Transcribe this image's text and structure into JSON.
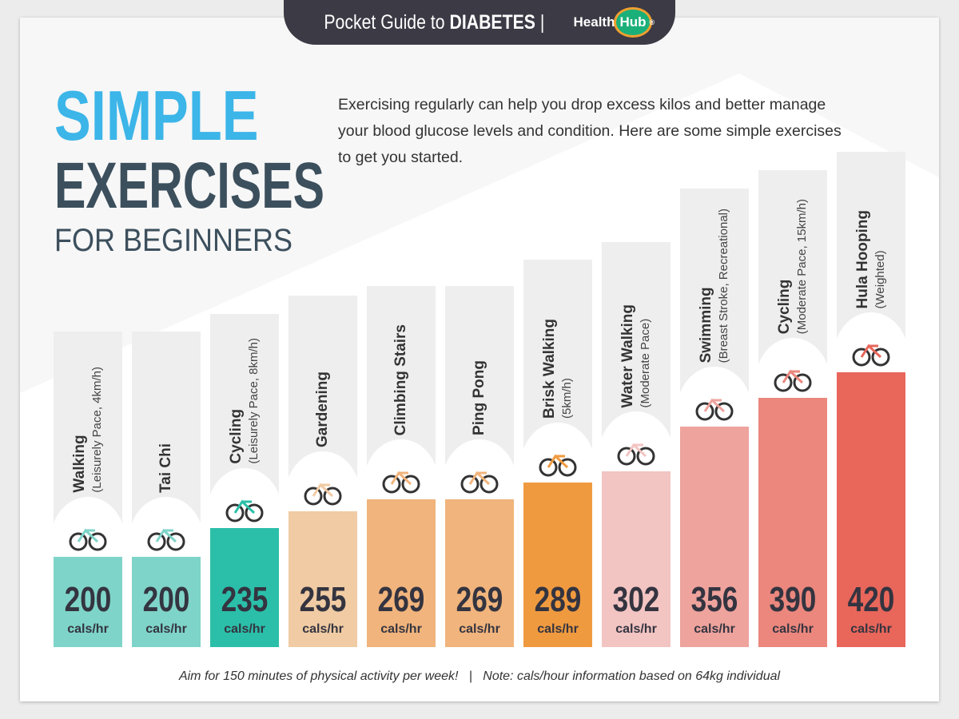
{
  "header": {
    "guide": "Pocket Guide to",
    "topic": "DIABETES",
    "logo": {
      "part1": "Health",
      "part2": "Hub",
      "mark": "®"
    }
  },
  "title": {
    "line1": "SIMPLE",
    "line2": "EXERCISES",
    "line3": "FOR BEGINNERS"
  },
  "intro": "Exercising regularly can help you drop excess kilos and better manage your blood glucose levels and condition. Here are some simple exercises to get you started.",
  "unit": "cals/hr",
  "footer": "Aim for 150 minutes of physical activity per week!   |   Note: cals/hour information based on 64kg individual",
  "chart_data": {
    "type": "bar",
    "categories": [
      "Walking",
      "Tai Chi",
      "Cycling",
      "Gardening",
      "Climbing Stairs",
      "Ping Pong",
      "Brisk Walking",
      "Water Walking",
      "Swimming",
      "Cycling",
      "Hula Hooping"
    ],
    "subtitles": [
      "(Leisurely Pace, 4km/h)",
      "",
      "(Leisurely Pace, 8km/h)",
      "",
      "",
      "",
      "(5km/h)",
      "(Moderate Pace)",
      "(Breast Stroke, Recreational)",
      "(Moderate Pace, 15km/h)",
      "(Weighted)"
    ],
    "values": [
      200,
      200,
      235,
      255,
      269,
      269,
      289,
      302,
      356,
      390,
      420
    ],
    "value_unit": "cals/hr",
    "colors": [
      "#7ed4c8",
      "#7ed4c8",
      "#2bbfa9",
      "#f0cba3",
      "#f1b47c",
      "#f1b47c",
      "#f09a3f",
      "#f2c4c2",
      "#eea39d",
      "#eb877d",
      "#e8665a"
    ],
    "icons": [
      "legs-walking-icon",
      "tai-chi-person-icon",
      "bicycle-icon",
      "garden-tools-icon",
      "stairs-icon",
      "ping-pong-paddles-icon",
      "brisk-walking-icon",
      "water-walking-icon",
      "swimmer-icon",
      "bicycle-icon",
      "hula-hoops-icon"
    ]
  }
}
